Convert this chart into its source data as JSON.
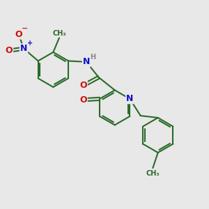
{
  "bg_color": "#e8e8e8",
  "bond_color": "#2a6a2a",
  "N_color": "#1010cc",
  "O_color": "#cc1010",
  "H_color": "#888888",
  "line_width": 1.5,
  "fig_size": [
    3.0,
    3.0
  ],
  "dpi": 100,
  "xlim": [
    0,
    10
  ],
  "ylim": [
    0,
    10
  ]
}
